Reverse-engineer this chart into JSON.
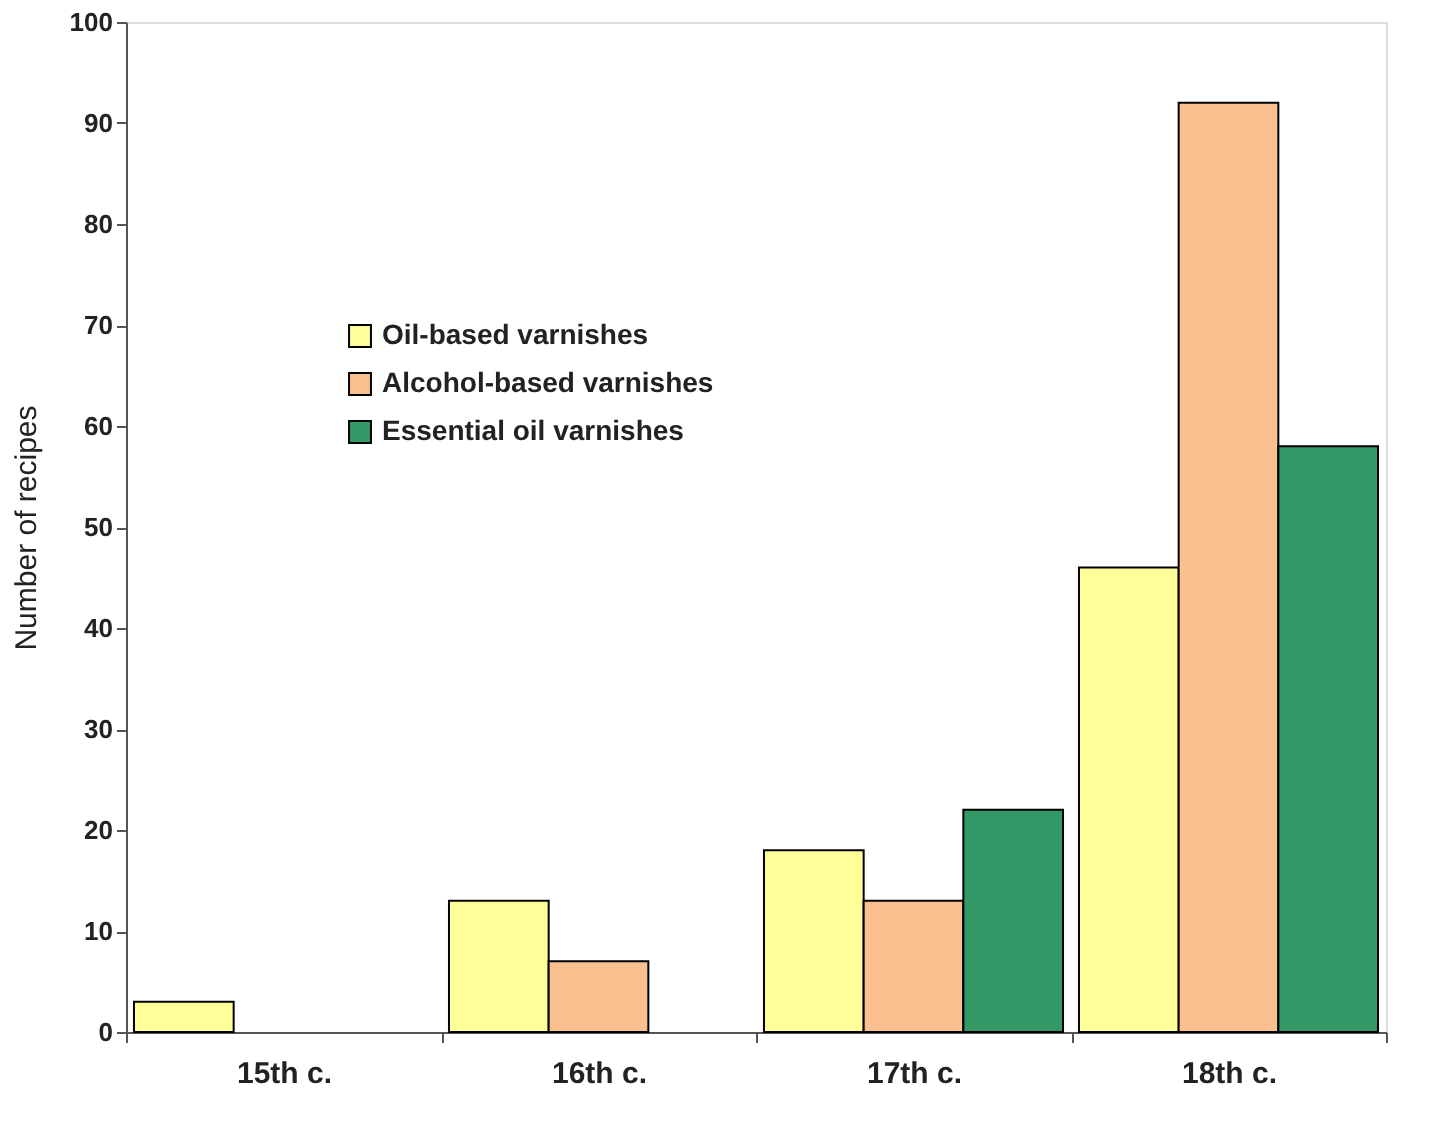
{
  "chart_data": {
    "type": "bar",
    "ylabel": "Number of recipes",
    "categories": [
      "15th c.",
      "16th c.",
      "17th c.",
      "18th c."
    ],
    "series": [
      {
        "name": "Oil-based varnishes",
        "color": "#ffff99",
        "values": [
          3,
          13,
          18,
          46
        ]
      },
      {
        "name": "Alcohol-based varnishes",
        "color": "#fac090",
        "values": [
          null,
          7,
          13,
          92
        ]
      },
      {
        "name": "Essential oil varnishes",
        "color": "#339966",
        "values": [
          null,
          null,
          22,
          58
        ]
      }
    ],
    "ylim": [
      0,
      100
    ],
    "yticks": [
      0,
      10,
      20,
      30,
      40,
      50,
      60,
      70,
      80,
      90,
      100
    ],
    "grid": false,
    "legend": "left"
  }
}
